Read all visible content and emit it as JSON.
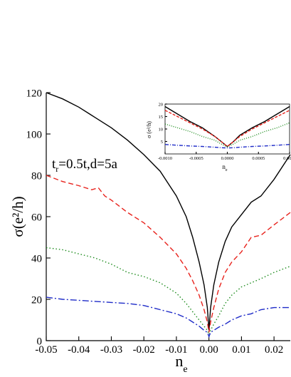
{
  "chart_data": [
    {
      "type": "line",
      "title": "",
      "xlabel": "n",
      "xlabel_sub": "e",
      "ylabel": "σ(e²/h)",
      "xlim": [
        -0.05,
        0.025
      ],
      "ylim": [
        0,
        120
      ],
      "xticks": [
        -0.05,
        -0.04,
        -0.03,
        -0.02,
        -0.01,
        0.0,
        0.01,
        0.02
      ],
      "xtick_labels": [
        "-0.05",
        "-0.04",
        "-0.03",
        "-0.02",
        "-0.01",
        "0.00",
        "0.01",
        "0.02"
      ],
      "yticks": [
        0,
        20,
        40,
        60,
        80,
        100,
        120
      ],
      "ytick_labels": [
        "0",
        "20",
        "40",
        "60",
        "80",
        "100",
        "120"
      ],
      "grid": false,
      "annotation": {
        "main": "t",
        "sub": "r",
        "rest": "=0.5t,d=5a"
      },
      "series": [
        {
          "color": "#000000",
          "style": "solid",
          "x": [
            -0.05,
            -0.045,
            -0.04,
            -0.035,
            -0.03,
            -0.025,
            -0.02,
            -0.015,
            -0.01,
            -0.007,
            -0.005,
            -0.003,
            -0.0015,
            -0.0005,
            0.0,
            0.0005,
            0.0015,
            0.003,
            0.005,
            0.007,
            0.01,
            0.013,
            0.016,
            0.02,
            0.025
          ],
          "y": [
            120,
            117,
            113,
            108,
            103,
            97,
            90,
            82,
            70,
            60,
            50,
            38,
            27,
            16,
            5,
            16,
            27,
            38,
            48,
            55,
            61,
            67,
            70,
            78,
            90
          ]
        },
        {
          "color": "#e8231d",
          "style": "dashed",
          "x": [
            -0.05,
            -0.045,
            -0.04,
            -0.036,
            -0.034,
            -0.032,
            -0.03,
            -0.025,
            -0.02,
            -0.015,
            -0.01,
            -0.007,
            -0.005,
            -0.003,
            -0.0015,
            -0.0005,
            0.0,
            0.0005,
            0.0015,
            0.003,
            0.005,
            0.007,
            0.01,
            0.013,
            0.016,
            0.02,
            0.025
          ],
          "y": [
            80,
            77,
            75,
            73,
            74,
            70,
            68,
            62,
            57,
            50,
            42,
            35,
            29,
            22,
            15,
            9,
            4,
            9,
            16,
            25,
            33,
            38,
            43,
            50,
            51,
            56,
            62
          ]
        },
        {
          "color": "#1e8c1e",
          "style": "dotted",
          "x": [
            -0.05,
            -0.045,
            -0.04,
            -0.035,
            -0.03,
            -0.025,
            -0.02,
            -0.015,
            -0.01,
            -0.007,
            -0.005,
            -0.003,
            -0.0015,
            -0.0005,
            0.0,
            0.0005,
            0.0015,
            0.003,
            0.005,
            0.007,
            0.01,
            0.013,
            0.016,
            0.02,
            0.025
          ],
          "y": [
            45,
            44,
            42,
            40,
            37,
            33,
            31,
            28,
            23,
            18,
            14,
            10,
            7,
            5,
            3,
            5,
            8,
            12,
            18,
            22,
            26,
            28,
            30,
            33,
            36
          ]
        },
        {
          "color": "#1e2bc8",
          "style": "dashdot",
          "x": [
            -0.05,
            -0.045,
            -0.04,
            -0.035,
            -0.03,
            -0.025,
            -0.02,
            -0.015,
            -0.01,
            -0.007,
            -0.005,
            -0.003,
            -0.0015,
            -0.0005,
            0.0,
            0.0005,
            0.0015,
            0.003,
            0.005,
            0.007,
            0.01,
            0.013,
            0.016,
            0.02,
            0.025
          ],
          "y": [
            21,
            20,
            19.5,
            19,
            18.5,
            18,
            17,
            15,
            13,
            11,
            9,
            7,
            5,
            4,
            2,
            4,
            5,
            6.5,
            8,
            10,
            12,
            13,
            15,
            16,
            16
          ]
        }
      ]
    },
    {
      "type": "line",
      "title": "",
      "xlabel": "n",
      "xlabel_sub": "e",
      "ylabel": "σ (e²/h)",
      "xlim": [
        -0.001,
        0.001
      ],
      "ylim": [
        0,
        20
      ],
      "xticks": [
        -0.001,
        -0.0005,
        0.0,
        0.0005,
        0.001
      ],
      "xtick_labels": [
        "-0.0010",
        "-0.0005",
        "0.0000",
        "0.0005",
        "0.0010"
      ],
      "yticks": [
        5,
        10,
        15,
        20
      ],
      "ytick_labels": [
        "5",
        "10",
        "15",
        "20"
      ],
      "grid": false,
      "series": [
        {
          "color": "#000000",
          "style": "solid",
          "x": [
            -0.001,
            -0.0008,
            -0.0006,
            -0.0004,
            -0.0002,
            -0.0001,
            0.0,
            0.0001,
            0.0002,
            0.0004,
            0.0006,
            0.0008,
            0.001
          ],
          "y": [
            19,
            16,
            13,
            10.5,
            7,
            5,
            3,
            5,
            7.5,
            10.5,
            13,
            16,
            19
          ]
        },
        {
          "color": "#e8231d",
          "style": "dashed",
          "x": [
            -0.001,
            -0.0008,
            -0.0006,
            -0.0004,
            -0.0002,
            -0.0001,
            0.0,
            0.0001,
            0.0002,
            0.0004,
            0.0006,
            0.0008,
            0.001
          ],
          "y": [
            17.5,
            15,
            12.5,
            10,
            7,
            5,
            3,
            5,
            7,
            10,
            12.5,
            15,
            17.5
          ]
        },
        {
          "color": "#1e8c1e",
          "style": "dotted",
          "x": [
            -0.001,
            -0.0008,
            -0.0006,
            -0.0004,
            -0.0002,
            -0.0001,
            0.0,
            0.0001,
            0.0002,
            0.0004,
            0.0006,
            0.0008,
            0.001
          ],
          "y": [
            12,
            10.5,
            9,
            7,
            5.5,
            4,
            2.8,
            4,
            5.5,
            7,
            9,
            10.5,
            12.5
          ]
        },
        {
          "color": "#1e2bc8",
          "style": "dashdot",
          "x": [
            -0.001,
            -0.0008,
            -0.0006,
            -0.0004,
            -0.0002,
            -0.0001,
            0.0,
            0.0001,
            0.0002,
            0.0004,
            0.0006,
            0.0008,
            0.001
          ],
          "y": [
            3.8,
            3.5,
            3.2,
            3,
            2.7,
            2.5,
            2.4,
            2.5,
            2.7,
            3,
            3.2,
            3.5,
            3.8
          ]
        }
      ]
    }
  ]
}
